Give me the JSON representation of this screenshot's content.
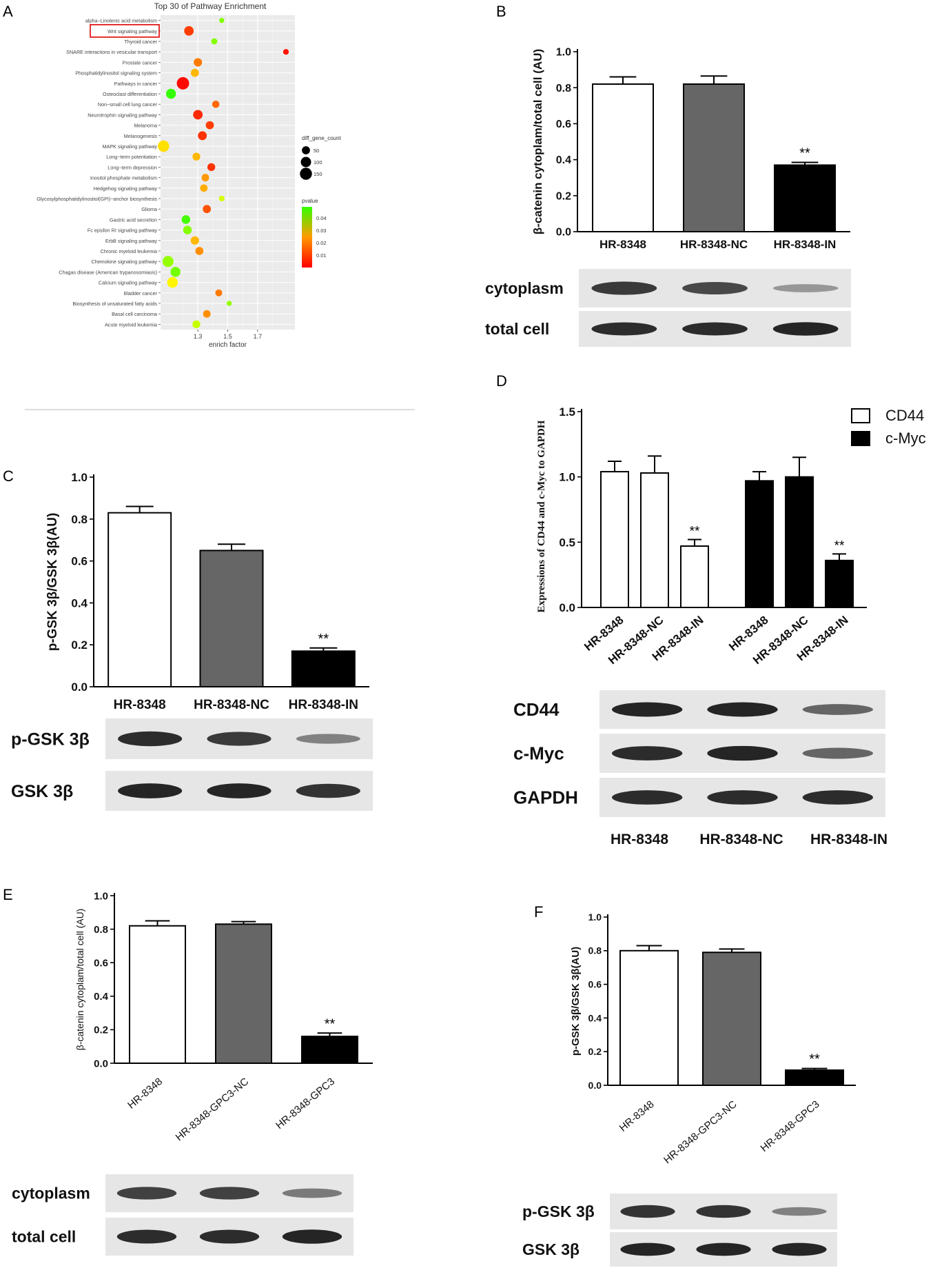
{
  "panels": {
    "A": "A",
    "B": "B",
    "C": "C",
    "D": "D",
    "E": "E",
    "F": "F"
  },
  "chart_data": [
    {
      "panel": "A",
      "type": "scatter",
      "title": "Top 30 of Pathway Enrichment",
      "xlabel": "enrich factor",
      "ylabel": "",
      "xlim": [
        1.05,
        1.95
      ],
      "xticks": [
        "1.3",
        "1.5",
        "1.7"
      ],
      "grid": true,
      "highlighted_category": "Wnt signaling pathway",
      "legend_size": {
        "title": "diff_gene_count",
        "entries": [
          "50",
          "100",
          "150"
        ]
      },
      "legend_color": {
        "title": "pvalue",
        "entries": [
          "0.04",
          "0.03",
          "0.02",
          "0.01"
        ],
        "low_color": "#ff0000",
        "high_color": "#33ff00"
      },
      "points": [
        {
          "label": "alpha−Linolenic acid metabolism",
          "x": 1.46,
          "count": 10,
          "pvalue": 0.04
        },
        {
          "label": "Wnt signaling pathway",
          "x": 1.24,
          "count": 80,
          "pvalue": 0.006
        },
        {
          "label": "Thyroid cancer",
          "x": 1.41,
          "count": 20,
          "pvalue": 0.04
        },
        {
          "label": "SNARE interactions in vesicular transport",
          "x": 1.89,
          "count": 15,
          "pvalue": 0.002
        },
        {
          "label": "Prostate cancer",
          "x": 1.3,
          "count": 55,
          "pvalue": 0.012
        },
        {
          "label": "Phosphatidylinositol signaling system",
          "x": 1.28,
          "count": 50,
          "pvalue": 0.018
        },
        {
          "label": "Pathways in cancer",
          "x": 1.2,
          "count": 160,
          "pvalue": 0.001
        },
        {
          "label": "Osteoclast differentiation",
          "x": 1.12,
          "count": 90,
          "pvalue": 0.05
        },
        {
          "label": "Non−small cell lung cancer",
          "x": 1.42,
          "count": 35,
          "pvalue": 0.01
        },
        {
          "label": "Neurotrophin signaling pathway",
          "x": 1.3,
          "count": 80,
          "pvalue": 0.004
        },
        {
          "label": "Melanoma",
          "x": 1.38,
          "count": 50,
          "pvalue": 0.006
        },
        {
          "label": "Melanogenesis",
          "x": 1.33,
          "count": 65,
          "pvalue": 0.005
        },
        {
          "label": "MAPK signaling pathway",
          "x": 1.07,
          "count": 130,
          "pvalue": 0.022
        },
        {
          "label": "Long−term potentiation",
          "x": 1.29,
          "count": 45,
          "pvalue": 0.018
        },
        {
          "label": "Long−term depression",
          "x": 1.39,
          "count": 45,
          "pvalue": 0.005
        },
        {
          "label": "Inositol phosphate metabolism",
          "x": 1.35,
          "count": 40,
          "pvalue": 0.015
        },
        {
          "label": "Hedgehog signaling pathway",
          "x": 1.34,
          "count": 40,
          "pvalue": 0.017
        },
        {
          "label": "Glycosylphosphatidylinositol(GPI)−anchor biosynthesis",
          "x": 1.46,
          "count": 15,
          "pvalue": 0.03
        },
        {
          "label": "Glioma",
          "x": 1.36,
          "count": 50,
          "pvalue": 0.008
        },
        {
          "label": "Gastric acid secretion",
          "x": 1.22,
          "count": 60,
          "pvalue": 0.048
        },
        {
          "label": "Fc epsilon RI signaling pathway",
          "x": 1.23,
          "count": 60,
          "pvalue": 0.04
        },
        {
          "label": "ErbB signaling pathway",
          "x": 1.28,
          "count": 55,
          "pvalue": 0.018
        },
        {
          "label": "Chronic myeloid leukemia",
          "x": 1.31,
          "count": 50,
          "pvalue": 0.014
        },
        {
          "label": "Chemokine signaling pathway",
          "x": 1.1,
          "count": 120,
          "pvalue": 0.038
        },
        {
          "label": "Chagas disease (American trypanosomiasis)",
          "x": 1.15,
          "count": 90,
          "pvalue": 0.042
        },
        {
          "label": "Calcium signaling pathway",
          "x": 1.13,
          "count": 110,
          "pvalue": 0.024
        },
        {
          "label": "Bladder cancer",
          "x": 1.44,
          "count": 30,
          "pvalue": 0.012
        },
        {
          "label": "Biosynthesis of unsaturated fatty acids",
          "x": 1.51,
          "count": 10,
          "pvalue": 0.038
        },
        {
          "label": "Basal cell carcinoma",
          "x": 1.36,
          "count": 40,
          "pvalue": 0.014
        },
        {
          "label": "Acute myeloid leukemia",
          "x": 1.29,
          "count": 45,
          "pvalue": 0.032
        }
      ]
    },
    {
      "panel": "B",
      "type": "bar",
      "categories": [
        "HR-8348",
        "HR-8348-NC",
        "HR-8348-IN"
      ],
      "values": [
        0.82,
        0.82,
        0.37
      ],
      "errors": [
        0.04,
        0.045,
        0.015
      ],
      "fills": [
        "#ffffff",
        "#666666",
        "#000000"
      ],
      "significance": [
        "",
        "",
        "**"
      ],
      "ylabel": "β-catenin cytoplam/total cell (AU)",
      "ylim": [
        0,
        1.0
      ],
      "yticks": [
        "0.0",
        "0.2",
        "0.4",
        "0.6",
        "0.8",
        "1.0"
      ],
      "blot": {
        "rows": [
          "cytoplasm",
          "total cell"
        ],
        "intensity": [
          [
            0.85,
            0.75,
            0.2
          ],
          [
            0.95,
            0.95,
            1.0
          ]
        ]
      }
    },
    {
      "panel": "C",
      "type": "bar",
      "categories": [
        "HR-8348",
        "HR-8348-NC",
        "HR-8348-IN"
      ],
      "values": [
        0.83,
        0.65,
        0.17
      ],
      "errors": [
        0.03,
        0.03,
        0.015
      ],
      "fills": [
        "#ffffff",
        "#666666",
        "#000000"
      ],
      "significance": [
        "",
        "",
        "**"
      ],
      "ylabel": "p-GSK 3β/GSK 3β(AU)",
      "ylim": [
        0,
        1.0
      ],
      "yticks": [
        "0.0",
        "0.2",
        "0.4",
        "0.6",
        "0.8",
        "1.0"
      ],
      "blot": {
        "rows": [
          "p-GSK 3β",
          "GSK 3β"
        ],
        "intensity": [
          [
            0.95,
            0.85,
            0.35
          ],
          [
            1.0,
            1.0,
            0.9
          ]
        ]
      }
    },
    {
      "panel": "D",
      "type": "bar",
      "categories": [
        "HR-8348",
        "HR-8348-NC",
        "HR-8348-IN"
      ],
      "series": [
        {
          "name": "CD44",
          "values": [
            1.04,
            1.03,
            0.47
          ],
          "errors": [
            0.08,
            0.13,
            0.05
          ],
          "fill": "#ffffff"
        },
        {
          "name": "c-Myc",
          "values": [
            0.97,
            1.0,
            0.36
          ],
          "errors": [
            0.07,
            0.15,
            0.05
          ],
          "fill": "#000000"
        }
      ],
      "significance": [
        "",
        "",
        "**"
      ],
      "ylabel": "Expressions of CD44 and c-Myc to GAPDH",
      "ylim": [
        0,
        1.5
      ],
      "yticks": [
        "0.0",
        "0.5",
        "1.0",
        "1.5"
      ],
      "legend": "top-right",
      "blot": {
        "rows": [
          "CD44",
          "c-Myc",
          "GAPDH"
        ],
        "intensity": [
          [
            1.0,
            1.0,
            0.55
          ],
          [
            0.95,
            1.0,
            0.55
          ],
          [
            0.95,
            0.95,
            0.95
          ]
        ],
        "lane_labels": [
          "HR-8348",
          "HR-8348-NC",
          "HR-8348-IN"
        ]
      }
    },
    {
      "panel": "E",
      "type": "bar",
      "categories": [
        "HR-8348",
        "HR-8348-GPC3-NC",
        "HR-8348-GPC3"
      ],
      "values": [
        0.82,
        0.83,
        0.16
      ],
      "errors": [
        0.03,
        0.015,
        0.02
      ],
      "fills": [
        "#ffffff",
        "#666666",
        "#000000"
      ],
      "significance": [
        "",
        "",
        "**"
      ],
      "ylabel": "β-catenin cytoplam/total cell (AU)",
      "ylim": [
        0,
        1.0
      ],
      "yticks": [
        "0.0",
        "0.2",
        "0.4",
        "0.6",
        "0.8",
        "1.0"
      ],
      "blot": {
        "rows": [
          "cytoplasm",
          "total cell"
        ],
        "intensity": [
          [
            0.8,
            0.8,
            0.4
          ],
          [
            0.95,
            0.95,
            1.0
          ]
        ]
      }
    },
    {
      "panel": "F",
      "type": "bar",
      "categories": [
        "HR-8348",
        "HR-8348-GPC3-NC",
        "HR-8348-GPC3"
      ],
      "values": [
        0.8,
        0.79,
        0.09
      ],
      "errors": [
        0.03,
        0.02,
        0.01
      ],
      "fills": [
        "#ffffff",
        "#666666",
        "#000000"
      ],
      "significance": [
        "",
        "",
        "**"
      ],
      "ylabel": "p-GSK 3β/GSK 3β(AU)",
      "ylim": [
        0,
        1.0
      ],
      "yticks": [
        "0.0",
        "0.2",
        "0.4",
        "0.6",
        "0.8",
        "1.0"
      ],
      "blot": {
        "rows": [
          "p-GSK 3β",
          "GSK 3β"
        ],
        "intensity": [
          [
            0.9,
            0.9,
            0.35
          ],
          [
            1.0,
            1.0,
            1.0
          ]
        ]
      }
    }
  ]
}
